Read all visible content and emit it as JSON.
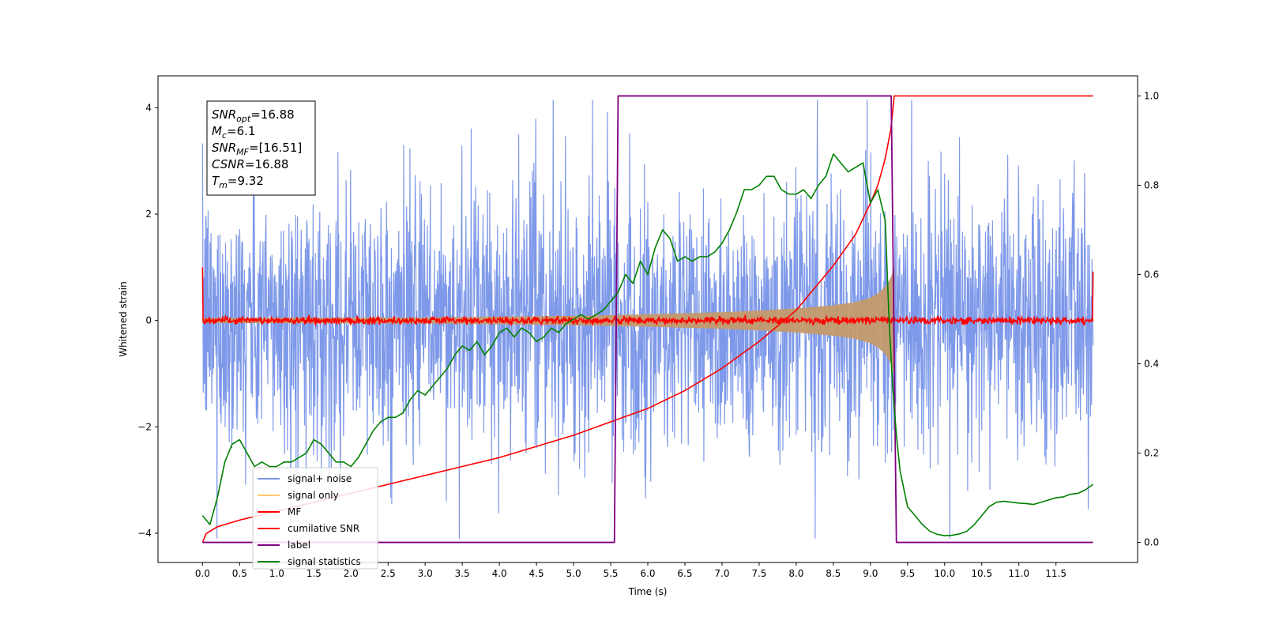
{
  "chart_data": {
    "type": "line",
    "title": "",
    "xlabel": "Time (s)",
    "ylabel": "Whitened strain",
    "xlim": [
      -0.6,
      12.6
    ],
    "ylim": [
      -4.55,
      4.6
    ],
    "y2lim": [
      -0.045,
      1.045
    ],
    "x_ticks": [
      0.0,
      0.5,
      1.0,
      1.5,
      2.0,
      2.5,
      3.0,
      3.5,
      4.0,
      4.5,
      5.0,
      5.5,
      6.0,
      6.5,
      7.0,
      7.5,
      8.0,
      8.5,
      9.0,
      9.5,
      10.0,
      10.5,
      11.0,
      11.5
    ],
    "x_tick_labels": [
      "0.0",
      "0.5",
      "1.0",
      "1.5",
      "2.0",
      "2.5",
      "3.0",
      "3.5",
      "4.0",
      "4.5",
      "5.0",
      "5.5",
      "6.0",
      "6.5",
      "7.0",
      "7.5",
      "8.0",
      "8.5",
      "9.0",
      "9.5",
      "10.0",
      "10.5",
      "11.0",
      "11.5"
    ],
    "y_ticks": [
      -4,
      -2,
      0,
      2,
      4
    ],
    "y_tick_labels": [
      "−4",
      "−2",
      "0",
      "2",
      "4"
    ],
    "y2_ticks": [
      0.0,
      0.2,
      0.4,
      0.6,
      0.8,
      1.0
    ],
    "y2_tick_labels": [
      "0.0",
      "0.2",
      "0.4",
      "0.6",
      "0.8",
      "1.0"
    ],
    "grid": false,
    "legend_placement": "lower-left",
    "legend": [
      {
        "label": "signal+ noise",
        "color": "#7793e8"
      },
      {
        "label": "signal only",
        "color": "#ffc870"
      },
      {
        "label": "MF",
        "color": "#ff0000"
      },
      {
        "label": "cumilative SNR",
        "color": "#ff0000"
      },
      {
        "label": "label",
        "color": "#800080"
      },
      {
        "label": "signal statistics",
        "color": "#008000"
      }
    ],
    "annotation": {
      "lines": [
        {
          "sym": "SNR",
          "sub": "opt",
          "rest": "=16.88"
        },
        {
          "sym": "M",
          "sub": "c",
          "rest": "=6.1"
        },
        {
          "sym": "SNR",
          "sub": "MF",
          "rest": "=[16.51]"
        },
        {
          "sym": "CSNR",
          "sub": "",
          "rest": "=16.88"
        },
        {
          "sym": "T",
          "sub": "m",
          "rest": "=9.32"
        }
      ]
    },
    "series": [
      {
        "name": "signal+ noise",
        "axis": "left",
        "color": "#7793e8",
        "x_range": [
          0.0,
          12.0
        ],
        "description_type": "noise",
        "envelope_y": [
          -2.5,
          2.5
        ],
        "peak_y": [
          -4.1,
          4.15
        ]
      },
      {
        "name": "signal only",
        "axis": "left",
        "color": "#c49a6c",
        "chirp_envelope": {
          "x": [
            0.0,
            3.0,
            5.0,
            6.0,
            7.0,
            7.5,
            8.0,
            8.5,
            8.8,
            9.0,
            9.1,
            9.2,
            9.28,
            9.32
          ],
          "y": [
            0.04,
            0.05,
            0.08,
            0.11,
            0.15,
            0.18,
            0.22,
            0.28,
            0.34,
            0.42,
            0.5,
            0.62,
            0.8,
            1.0
          ]
        }
      },
      {
        "name": "MF",
        "axis": "left",
        "color": "#ff0000",
        "x_range": [
          0.0,
          12.0
        ],
        "description_type": "noise",
        "envelope_y": [
          -0.08,
          0.12
        ],
        "edge_values": {
          "start": 1.0,
          "end": 0.92
        }
      },
      {
        "name": "cumilative SNR",
        "axis": "right",
        "color": "#ff0000",
        "x": [
          0.0,
          0.05,
          0.2,
          0.5,
          1.0,
          2.0,
          3.0,
          4.0,
          5.0,
          5.5,
          6.0,
          6.5,
          7.0,
          7.5,
          8.0,
          8.5,
          8.8,
          9.0,
          9.1,
          9.2,
          9.28,
          9.32,
          12.0
        ],
        "y": [
          0.0,
          0.02,
          0.035,
          0.05,
          0.07,
          0.11,
          0.15,
          0.19,
          0.24,
          0.27,
          0.3,
          0.34,
          0.39,
          0.45,
          0.52,
          0.62,
          0.69,
          0.76,
          0.8,
          0.86,
          0.93,
          1.0,
          1.0
        ]
      },
      {
        "name": "label",
        "axis": "right",
        "color": "#800080",
        "x": [
          0.0,
          5.55,
          5.6,
          9.28,
          9.35,
          12.0
        ],
        "y": [
          0.0,
          0.0,
          1.0,
          1.0,
          0.0,
          0.0
        ]
      },
      {
        "name": "signal statistics",
        "axis": "right",
        "color": "#008000",
        "x": [
          0.0,
          0.1,
          0.2,
          0.3,
          0.4,
          0.5,
          0.6,
          0.7,
          0.8,
          0.9,
          1.0,
          1.1,
          1.2,
          1.3,
          1.4,
          1.5,
          1.6,
          1.7,
          1.8,
          1.9,
          2.0,
          2.1,
          2.2,
          2.3,
          2.4,
          2.5,
          2.6,
          2.7,
          2.8,
          2.9,
          3.0,
          3.1,
          3.2,
          3.3,
          3.4,
          3.5,
          3.6,
          3.7,
          3.8,
          3.9,
          4.0,
          4.1,
          4.2,
          4.3,
          4.4,
          4.5,
          4.6,
          4.7,
          4.8,
          4.9,
          5.0,
          5.1,
          5.2,
          5.3,
          5.4,
          5.5,
          5.6,
          5.7,
          5.8,
          5.9,
          6.0,
          6.1,
          6.2,
          6.3,
          6.4,
          6.5,
          6.6,
          6.7,
          6.8,
          6.9,
          7.0,
          7.1,
          7.2,
          7.3,
          7.4,
          7.5,
          7.6,
          7.7,
          7.8,
          7.9,
          8.0,
          8.1,
          8.2,
          8.3,
          8.4,
          8.5,
          8.6,
          8.7,
          8.8,
          8.9,
          9.0,
          9.1,
          9.2,
          9.25,
          9.3,
          9.35,
          9.4,
          9.5,
          9.6,
          9.7,
          9.8,
          9.9,
          10.0,
          10.1,
          10.2,
          10.3,
          10.4,
          10.5,
          10.6,
          10.7,
          10.8,
          10.9,
          11.0,
          11.1,
          11.2,
          11.3,
          11.4,
          11.5,
          11.6,
          11.7,
          11.8,
          11.9,
          12.0
        ],
        "y": [
          0.06,
          0.04,
          0.1,
          0.18,
          0.22,
          0.23,
          0.2,
          0.17,
          0.18,
          0.17,
          0.17,
          0.18,
          0.18,
          0.19,
          0.2,
          0.23,
          0.22,
          0.2,
          0.18,
          0.18,
          0.17,
          0.19,
          0.22,
          0.25,
          0.27,
          0.28,
          0.28,
          0.29,
          0.32,
          0.34,
          0.33,
          0.35,
          0.37,
          0.39,
          0.42,
          0.44,
          0.43,
          0.45,
          0.42,
          0.44,
          0.47,
          0.48,
          0.46,
          0.48,
          0.47,
          0.45,
          0.46,
          0.48,
          0.47,
          0.49,
          0.5,
          0.51,
          0.5,
          0.51,
          0.52,
          0.54,
          0.56,
          0.6,
          0.58,
          0.63,
          0.6,
          0.66,
          0.7,
          0.68,
          0.63,
          0.64,
          0.63,
          0.64,
          0.64,
          0.65,
          0.67,
          0.7,
          0.74,
          0.79,
          0.79,
          0.8,
          0.82,
          0.82,
          0.79,
          0.78,
          0.78,
          0.79,
          0.77,
          0.8,
          0.82,
          0.87,
          0.85,
          0.83,
          0.84,
          0.85,
          0.76,
          0.79,
          0.72,
          0.5,
          0.35,
          0.24,
          0.16,
          0.08,
          0.06,
          0.04,
          0.025,
          0.018,
          0.015,
          0.016,
          0.019,
          0.025,
          0.04,
          0.06,
          0.08,
          0.09,
          0.092,
          0.09,
          0.088,
          0.087,
          0.085,
          0.09,
          0.095,
          0.1,
          0.102,
          0.108,
          0.11,
          0.118,
          0.13
        ]
      }
    ]
  }
}
